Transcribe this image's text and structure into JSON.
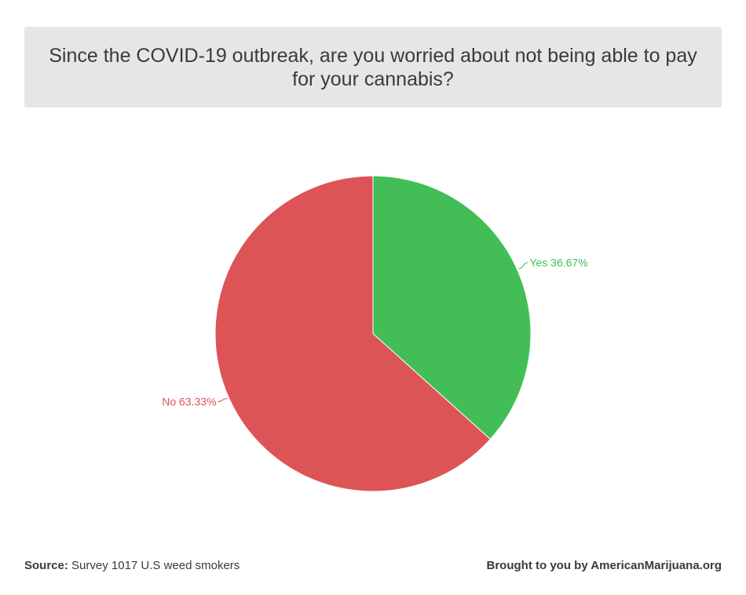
{
  "title": "Since the COVID-19 outbreak, are you worried about not being able to pay for your cannabis?",
  "chart_data": {
    "type": "pie",
    "title": "Since the COVID-19 outbreak, are you worried about not being able to pay for your cannabis?",
    "slices": [
      {
        "label": "Yes",
        "value": 36.67,
        "display": "Yes 36.67%",
        "color": "#43be57"
      },
      {
        "label": "No",
        "value": 63.33,
        "display": "No 63.33%",
        "color": "#dc5456"
      }
    ],
    "legend": "none"
  },
  "footer": {
    "source_label": "Source:",
    "source_text": "Survey 1017 U.S weed smokers",
    "credit": "Brought to you by AmericanMarijuana.org"
  },
  "colors": {
    "title_bg": "#e6e6e6",
    "text": "#3a3a3a",
    "yes": "#43be57",
    "no": "#dc5456"
  }
}
